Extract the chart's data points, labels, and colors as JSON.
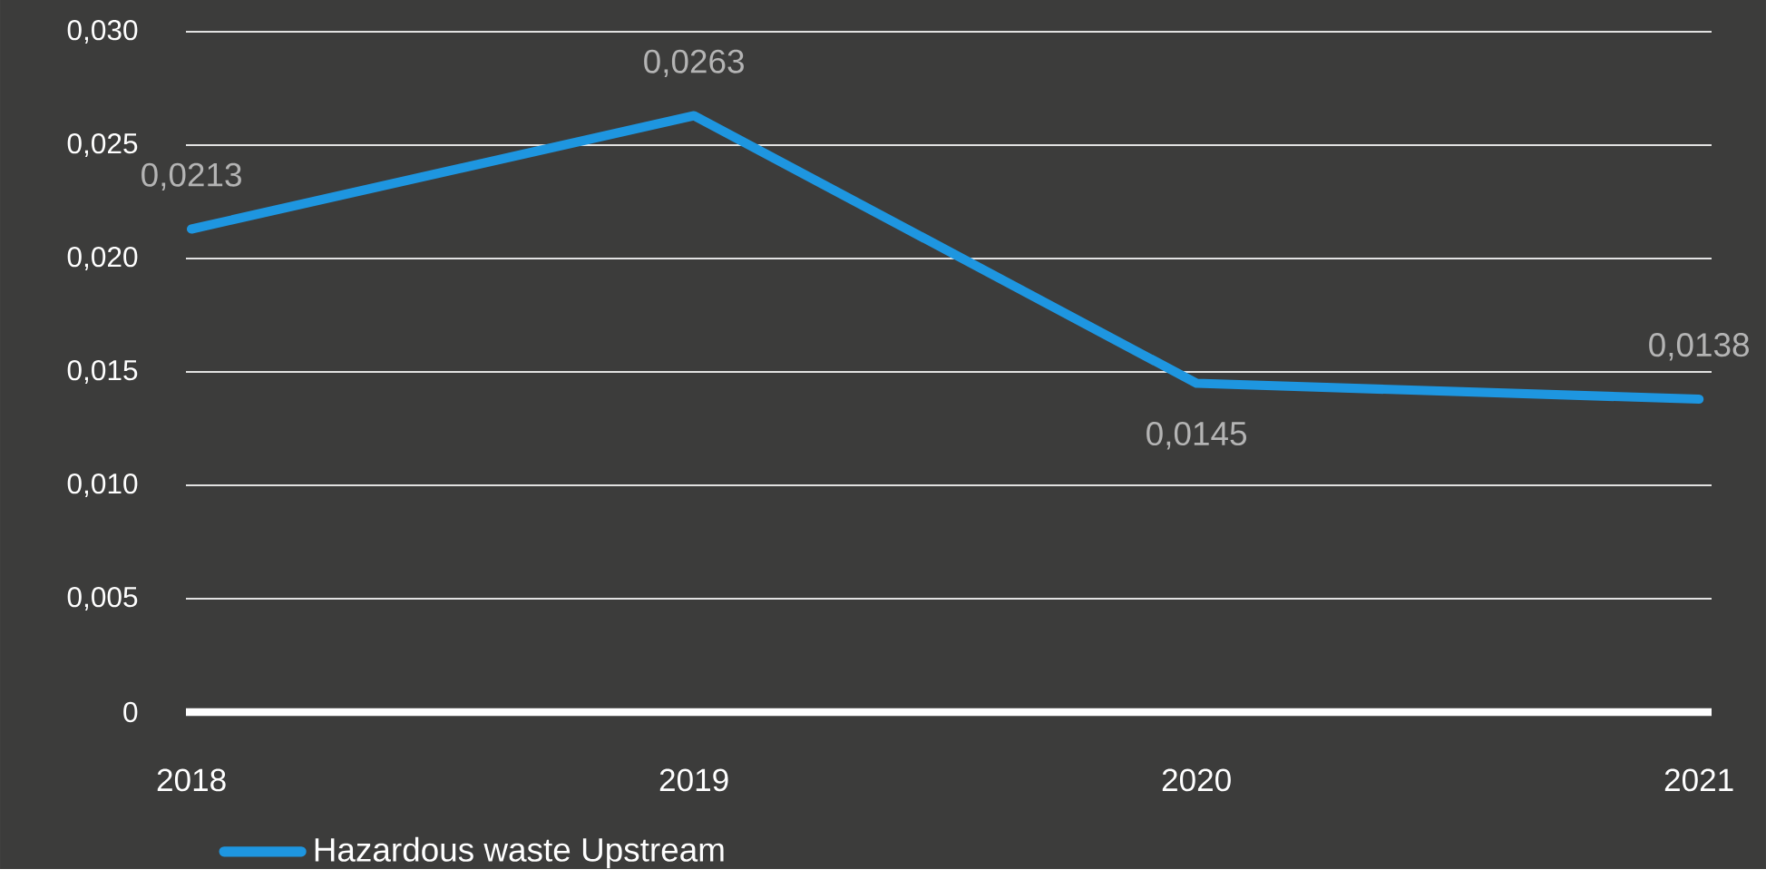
{
  "chart_data": {
    "type": "line",
    "categories": [
      "2018",
      "2019",
      "2020",
      "2021"
    ],
    "series": [
      {
        "name": "Hazardous waste Upstream",
        "color": "#1e96e0",
        "values": [
          0.0213,
          0.0263,
          0.0145,
          0.0138
        ],
        "value_labels": [
          "0,0213",
          "0,0263",
          "0,0145",
          "0,0138"
        ]
      }
    ],
    "ylim": [
      0,
      0.03
    ],
    "yticks": [
      0,
      {
        "value": 0.005,
        "label": "0,005"
      },
      {
        "value": 0.01,
        "label": "0,010"
      },
      {
        "value": 0.015,
        "label": "0,015"
      },
      {
        "value": 0.02,
        "label": "0,020"
      },
      {
        "value": 0.025,
        "label": "0,025"
      },
      {
        "value": 0.03,
        "label": "0,030"
      }
    ],
    "grid": "y",
    "legend": "bottom left",
    "marker": "none",
    "line_style": "solid"
  }
}
